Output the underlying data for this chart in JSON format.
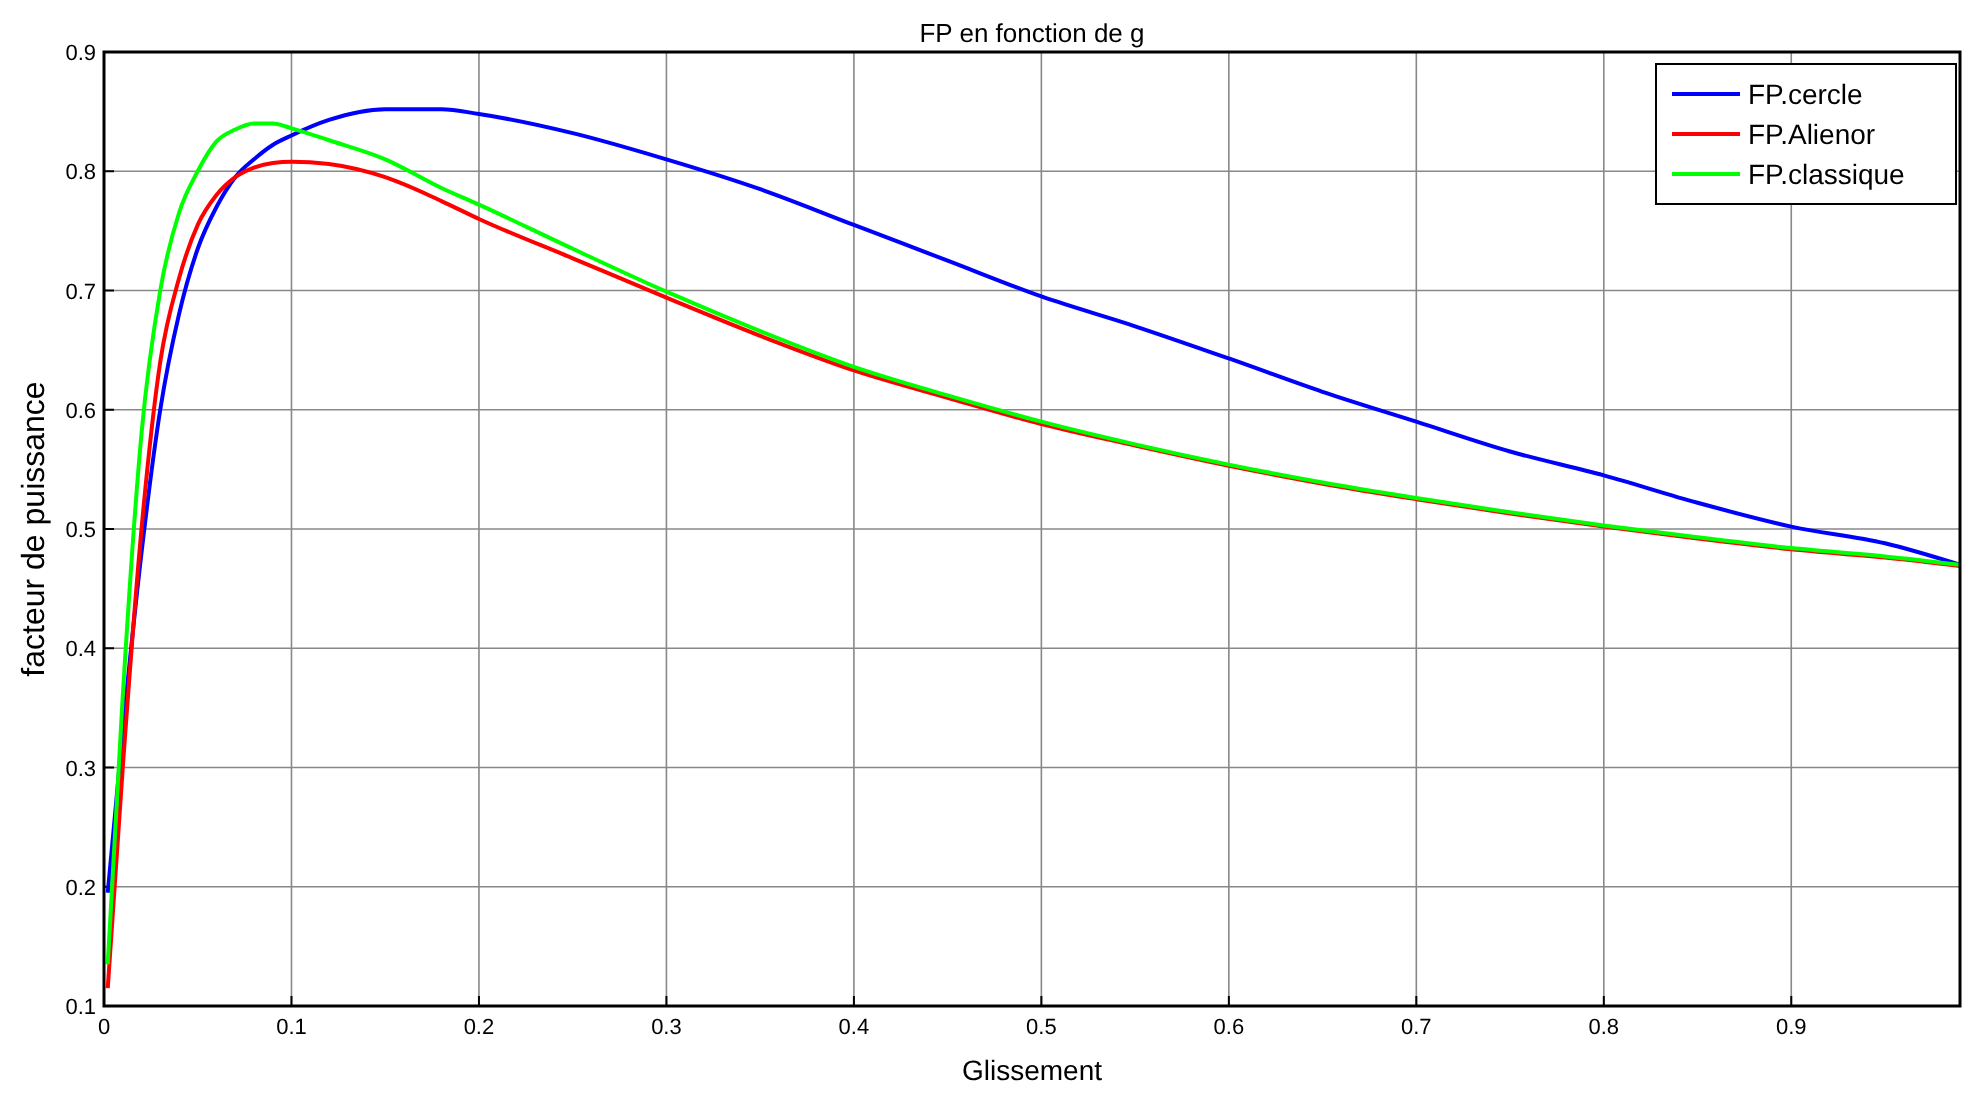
{
  "chart_data": {
    "type": "line",
    "title": "FP en fonction de g",
    "xlabel": "Glissement",
    "ylabel": "facteur de puissance",
    "x": [
      0.002,
      0.01,
      0.02,
      0.03,
      0.04,
      0.05,
      0.06,
      0.07,
      0.08,
      0.09,
      0.1,
      0.12,
      0.15,
      0.18,
      0.2,
      0.25,
      0.3,
      0.35,
      0.4,
      0.45,
      0.5,
      0.55,
      0.6,
      0.65,
      0.7,
      0.75,
      0.8,
      0.85,
      0.9,
      0.95,
      0.99
    ],
    "series": [
      {
        "name": "FP.cercle",
        "color": "#0000ff",
        "values": [
          0.195,
          0.33,
          0.48,
          0.6,
          0.68,
          0.735,
          0.77,
          0.795,
          0.81,
          0.822,
          0.83,
          0.843,
          0.852,
          0.852,
          0.848,
          0.832,
          0.81,
          0.785,
          0.755,
          0.725,
          0.695,
          0.67,
          0.643,
          0.615,
          0.59,
          0.565,
          0.545,
          0.522,
          0.502,
          0.488,
          0.47
        ]
      },
      {
        "name": "FP.Alienor",
        "color": "#ff0000",
        "values": [
          0.115,
          0.3,
          0.5,
          0.64,
          0.71,
          0.755,
          0.78,
          0.795,
          0.803,
          0.807,
          0.808,
          0.806,
          0.795,
          0.775,
          0.76,
          0.727,
          0.694,
          0.662,
          0.633,
          0.61,
          0.588,
          0.57,
          0.553,
          0.538,
          0.525,
          0.513,
          0.502,
          0.492,
          0.483,
          0.476,
          0.469
        ]
      },
      {
        "name": "FP.classique",
        "color": "#00ff00",
        "values": [
          0.135,
          0.36,
          0.58,
          0.7,
          0.765,
          0.8,
          0.825,
          0.835,
          0.84,
          0.84,
          0.836,
          0.826,
          0.81,
          0.786,
          0.772,
          0.735,
          0.699,
          0.666,
          0.636,
          0.612,
          0.59,
          0.571,
          0.554,
          0.539,
          0.526,
          0.514,
          0.503,
          0.493,
          0.484,
          0.477,
          0.47
        ]
      }
    ],
    "xlim": [
      0,
      0.99
    ],
    "xticks": [
      0,
      0.1,
      0.2,
      0.3,
      0.4,
      0.5,
      0.6,
      0.7,
      0.8,
      0.9
    ],
    "ylim": [
      0.1,
      0.9
    ],
    "yticks": [
      0.1,
      0.2,
      0.3,
      0.4,
      0.5,
      0.6,
      0.7,
      0.8,
      0.9
    ],
    "grid": true,
    "legend": "top right",
    "marker": "none",
    "line_style": "solid"
  }
}
